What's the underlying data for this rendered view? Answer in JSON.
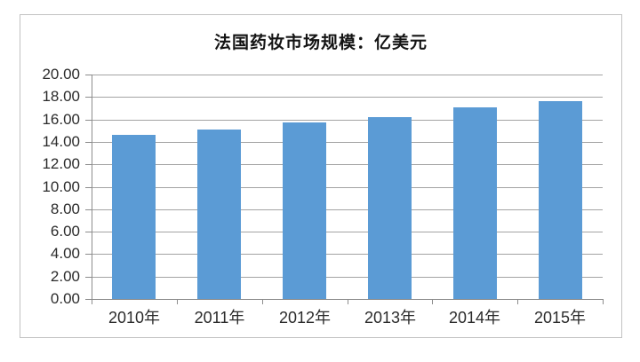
{
  "chart_data": {
    "type": "bar",
    "title": "法国药妆市场规模：亿美元",
    "categories": [
      "2010年",
      "2011年",
      "2012年",
      "2013年",
      "2014年",
      "2015年"
    ],
    "values": [
      14.6,
      15.1,
      15.7,
      16.2,
      17.1,
      17.6
    ],
    "xlabel": "",
    "ylabel": "",
    "ylim": [
      0,
      20
    ],
    "y_tick_step": 2,
    "y_tick_labels": [
      "0.00",
      "2.00",
      "4.00",
      "6.00",
      "8.00",
      "10.00",
      "12.00",
      "14.00",
      "16.00",
      "18.00",
      "20.00"
    ],
    "grid": true,
    "legend_position": "none",
    "bar_color": "#5b9bd5",
    "gridline_color": "#a3a3a3",
    "axis_color": "#8c8c8c",
    "label_color": "#2b2b2b",
    "title_color": "#141414",
    "frame_border_color": "#c2c2c2",
    "background_color": "#ffffff"
  }
}
